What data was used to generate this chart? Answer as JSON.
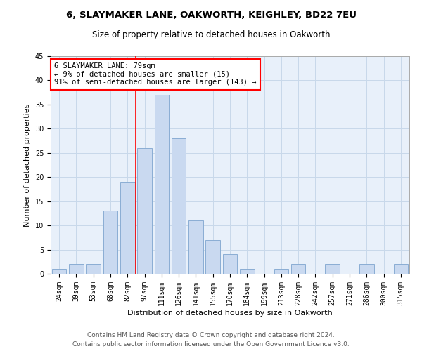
{
  "title1": "6, SLAYMAKER LANE, OAKWORTH, KEIGHLEY, BD22 7EU",
  "title2": "Size of property relative to detached houses in Oakworth",
  "xlabel": "Distribution of detached houses by size in Oakworth",
  "ylabel": "Number of detached properties",
  "categories": [
    "24sqm",
    "39sqm",
    "53sqm",
    "68sqm",
    "82sqm",
    "97sqm",
    "111sqm",
    "126sqm",
    "141sqm",
    "155sqm",
    "170sqm",
    "184sqm",
    "199sqm",
    "213sqm",
    "228sqm",
    "242sqm",
    "257sqm",
    "271sqm",
    "286sqm",
    "300sqm",
    "315sqm"
  ],
  "values": [
    1,
    2,
    2,
    13,
    19,
    26,
    37,
    28,
    11,
    7,
    4,
    1,
    0,
    1,
    2,
    0,
    2,
    0,
    2,
    0,
    2
  ],
  "bar_color": "#c9d9f0",
  "bar_edge_color": "#8aadd4",
  "grid_color": "#c8d8ea",
  "background_color": "#e8f0fa",
  "vline_color": "red",
  "vline_x": 4.5,
  "annotation_line1": "6 SLAYMAKER LANE: 79sqm",
  "annotation_line2": "← 9% of detached houses are smaller (15)",
  "annotation_line3": "91% of semi-detached houses are larger (143) →",
  "annotation_box_color": "white",
  "annotation_box_edge_color": "red",
  "ylim": [
    0,
    45
  ],
  "yticks": [
    0,
    5,
    10,
    15,
    20,
    25,
    30,
    35,
    40,
    45
  ],
  "footer1": "Contains HM Land Registry data © Crown copyright and database right 2024.",
  "footer2": "Contains public sector information licensed under the Open Government Licence v3.0.",
  "title1_fontsize": 9.5,
  "title2_fontsize": 8.5,
  "tick_fontsize": 7,
  "ylabel_fontsize": 8,
  "xlabel_fontsize": 8,
  "annotation_fontsize": 7.5,
  "footer_fontsize": 6.5
}
